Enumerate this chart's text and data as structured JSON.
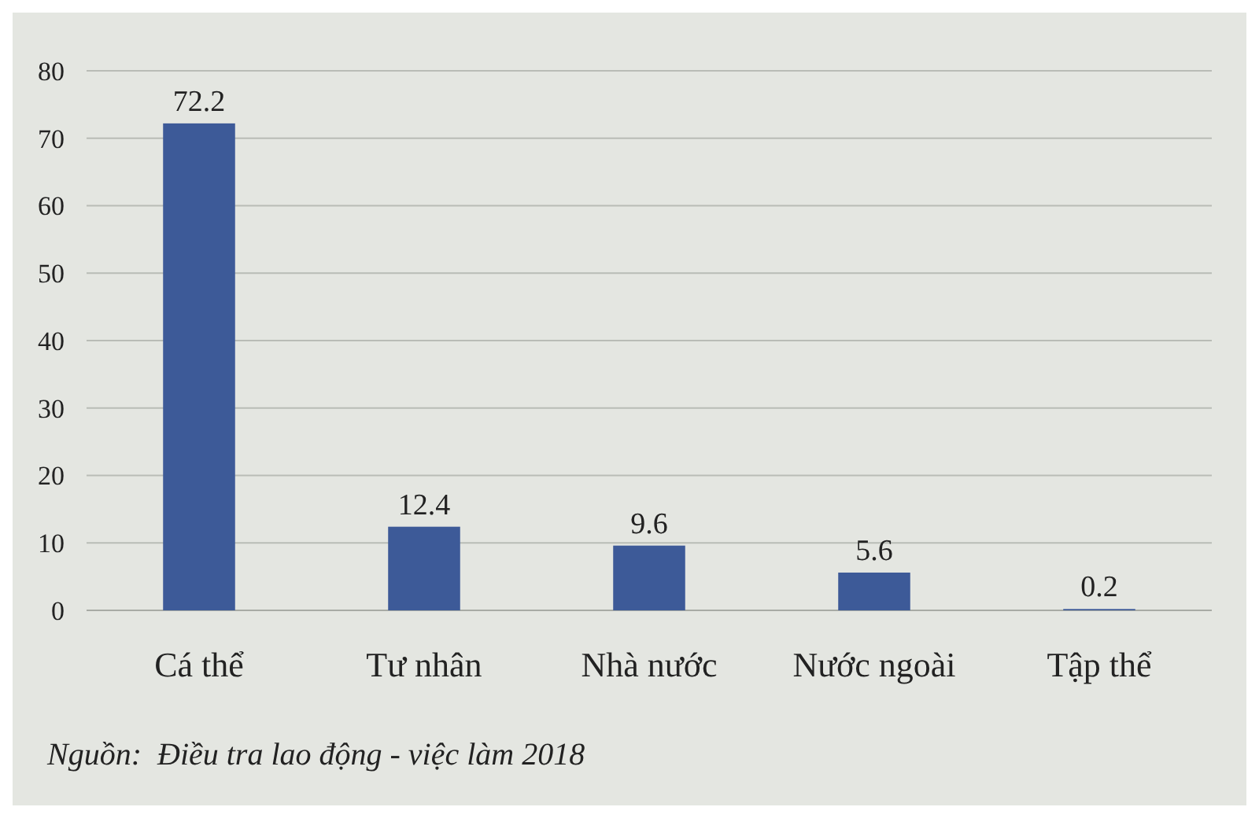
{
  "chart_data": {
    "type": "bar",
    "categories": [
      "Cá thể",
      "Tư nhân",
      "Nhà nước",
      "Nước ngoài",
      "Tập thể"
    ],
    "values": [
      72.2,
      12.4,
      9.6,
      5.6,
      0.2
    ],
    "color": "#3d5a98",
    "ylim": [
      0,
      80
    ],
    "yticks": [
      0,
      10,
      20,
      30,
      40,
      50,
      60,
      70,
      80
    ],
    "grid": "y",
    "data_labels": true,
    "annotations": [
      "Nguồn:  Điều tra lao động - việc làm 2018"
    ]
  }
}
